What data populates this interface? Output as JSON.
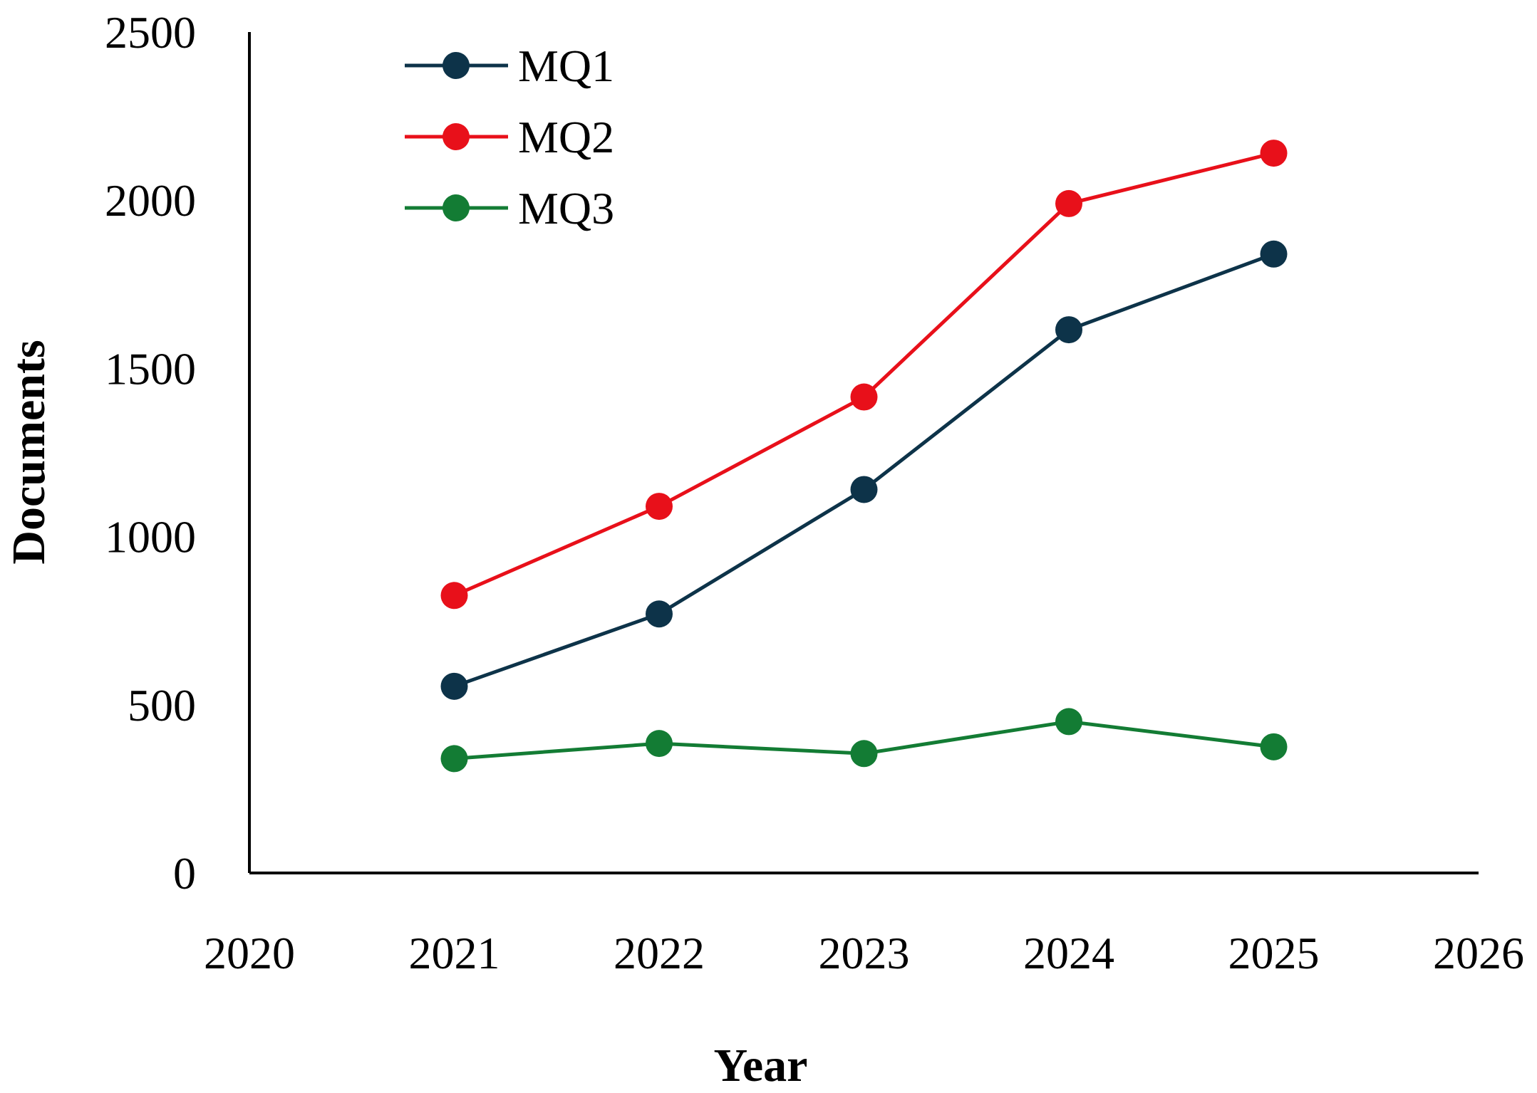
{
  "chart_data": {
    "type": "line",
    "title": "",
    "xlabel": "Year",
    "ylabel": "Documents",
    "xlim": [
      2020,
      2026
    ],
    "ylim": [
      0,
      2500
    ],
    "xticks": [
      "2020",
      "2021",
      "2022",
      "2023",
      "2024",
      "2025",
      "2026"
    ],
    "yticks": [
      "0",
      "500",
      "1000",
      "1500",
      "2000",
      "2500"
    ],
    "grid": false,
    "legend_position": "top-left",
    "x": [
      2021,
      2022,
      2023,
      2024,
      2025
    ],
    "series": [
      {
        "name": "MQ1",
        "color": "#0d3349",
        "values": [
          555,
          770,
          1140,
          1615,
          1840
        ]
      },
      {
        "name": "MQ2",
        "color": "#e8101a",
        "values": [
          825,
          1090,
          1415,
          1990,
          2140
        ]
      },
      {
        "name": "MQ3",
        "color": "#137c34",
        "values": [
          340,
          385,
          355,
          450,
          375
        ]
      }
    ]
  }
}
